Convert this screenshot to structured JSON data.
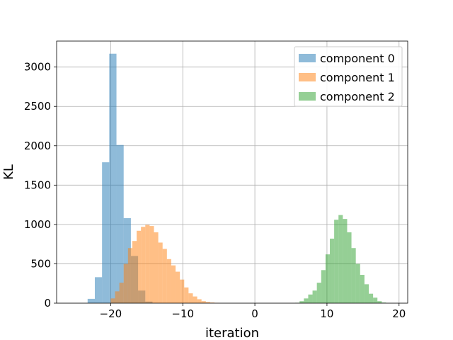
{
  "chart_data": {
    "type": "histogram",
    "xlabel": "iteration",
    "ylabel": "KL",
    "xlim": [
      -27.5,
      21.2
    ],
    "ylim": [
      0,
      3330
    ],
    "xticks": [
      -20,
      -10,
      0,
      10,
      20
    ],
    "xtick_labels": [
      "−20",
      "−10",
      "0",
      "10",
      "20"
    ],
    "yticks": [
      0,
      500,
      1000,
      1500,
      2000,
      2500,
      3000
    ],
    "ytick_labels": [
      "0",
      "500",
      "1000",
      "1500",
      "2000",
      "2500",
      "3000"
    ],
    "grid": true,
    "legend_position": "top-right",
    "series": [
      {
        "name": "component 0",
        "color": "#1f77b4",
        "opacity": 0.5,
        "bins": [
          {
            "x0": -23.2,
            "x1": -22.2,
            "count": 55
          },
          {
            "x0": -22.2,
            "x1": -21.2,
            "count": 330
          },
          {
            "x0": -21.2,
            "x1": -20.2,
            "count": 1790
          },
          {
            "x0": -20.2,
            "x1": -19.2,
            "count": 3170
          },
          {
            "x0": -19.2,
            "x1": -18.2,
            "count": 2010
          },
          {
            "x0": -18.2,
            "x1": -17.2,
            "count": 1080
          },
          {
            "x0": -17.2,
            "x1": -16.2,
            "count": 600
          },
          {
            "x0": -16.2,
            "x1": -15.2,
            "count": 160
          },
          {
            "x0": -15.2,
            "x1": -14.2,
            "count": 20
          }
        ]
      },
      {
        "name": "component 1",
        "color": "#ff7f0e",
        "opacity": 0.5,
        "bins": [
          {
            "x0": -20.0,
            "x1": -19.4,
            "count": 60
          },
          {
            "x0": -19.4,
            "x1": -18.8,
            "count": 150
          },
          {
            "x0": -18.8,
            "x1": -18.2,
            "count": 260
          },
          {
            "x0": -18.2,
            "x1": -17.6,
            "count": 500
          },
          {
            "x0": -17.6,
            "x1": -17.0,
            "count": 700
          },
          {
            "x0": -17.0,
            "x1": -16.4,
            "count": 790
          },
          {
            "x0": -16.4,
            "x1": -15.8,
            "count": 920
          },
          {
            "x0": -15.8,
            "x1": -15.2,
            "count": 970
          },
          {
            "x0": -15.2,
            "x1": -14.6,
            "count": 995
          },
          {
            "x0": -14.6,
            "x1": -14.0,
            "count": 980
          },
          {
            "x0": -14.0,
            "x1": -13.4,
            "count": 900
          },
          {
            "x0": -13.4,
            "x1": -12.8,
            "count": 770
          },
          {
            "x0": -12.8,
            "x1": -12.2,
            "count": 690
          },
          {
            "x0": -12.2,
            "x1": -11.6,
            "count": 560
          },
          {
            "x0": -11.6,
            "x1": -11.0,
            "count": 480
          },
          {
            "x0": -11.0,
            "x1": -10.4,
            "count": 400
          },
          {
            "x0": -10.4,
            "x1": -9.8,
            "count": 300
          },
          {
            "x0": -9.8,
            "x1": -9.2,
            "count": 200
          },
          {
            "x0": -9.2,
            "x1": -8.6,
            "count": 125
          },
          {
            "x0": -8.6,
            "x1": -8.0,
            "count": 85
          },
          {
            "x0": -8.0,
            "x1": -7.4,
            "count": 50
          },
          {
            "x0": -7.4,
            "x1": -6.8,
            "count": 25
          },
          {
            "x0": -6.8,
            "x1": -6.2,
            "count": 15
          },
          {
            "x0": -6.2,
            "x1": -5.6,
            "count": 8
          },
          {
            "x0": -5.6,
            "x1": -5.0,
            "count": 4
          }
        ]
      },
      {
        "name": "component 2",
        "color": "#2ca02c",
        "opacity": 0.5,
        "bins": [
          {
            "x0": 5.6,
            "x1": 6.2,
            "count": 5
          },
          {
            "x0": 6.2,
            "x1": 6.8,
            "count": 25
          },
          {
            "x0": 6.8,
            "x1": 7.4,
            "count": 60
          },
          {
            "x0": 7.4,
            "x1": 8.0,
            "count": 110
          },
          {
            "x0": 8.0,
            "x1": 8.6,
            "count": 160
          },
          {
            "x0": 8.6,
            "x1": 9.2,
            "count": 260
          },
          {
            "x0": 9.2,
            "x1": 9.8,
            "count": 420
          },
          {
            "x0": 9.8,
            "x1": 10.4,
            "count": 620
          },
          {
            "x0": 10.4,
            "x1": 11.0,
            "count": 820
          },
          {
            "x0": 11.0,
            "x1": 11.6,
            "count": 1060
          },
          {
            "x0": 11.6,
            "x1": 12.2,
            "count": 1120
          },
          {
            "x0": 12.2,
            "x1": 12.8,
            "count": 1070
          },
          {
            "x0": 12.8,
            "x1": 13.4,
            "count": 900
          },
          {
            "x0": 13.4,
            "x1": 14.0,
            "count": 700
          },
          {
            "x0": 14.0,
            "x1": 14.6,
            "count": 500
          },
          {
            "x0": 14.6,
            "x1": 15.2,
            "count": 360
          },
          {
            "x0": 15.2,
            "x1": 15.8,
            "count": 240
          },
          {
            "x0": 15.8,
            "x1": 16.4,
            "count": 120
          },
          {
            "x0": 16.4,
            "x1": 17.0,
            "count": 70
          },
          {
            "x0": 17.0,
            "x1": 17.6,
            "count": 25
          },
          {
            "x0": 17.6,
            "x1": 18.2,
            "count": 8
          }
        ]
      }
    ]
  }
}
